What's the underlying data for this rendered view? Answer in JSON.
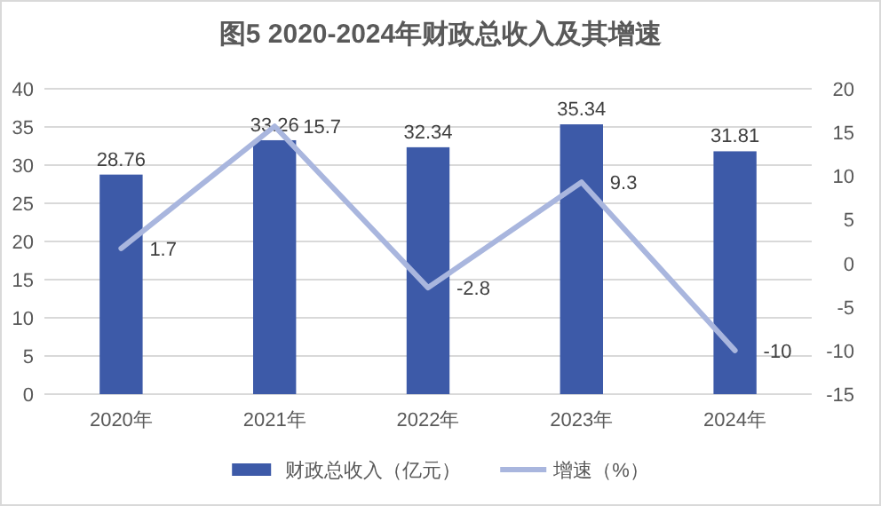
{
  "chart_data": {
    "type": "bar",
    "title": "图5 2020-2024年财政总收入及其增速",
    "categories": [
      "2020年",
      "2021年",
      "2022年",
      "2023年",
      "2024年"
    ],
    "series": [
      {
        "name": "财政总收入（亿元）",
        "color": "#3d5aa8",
        "values": [
          28.76,
          33.26,
          32.34,
          35.34,
          31.81
        ]
      },
      {
        "name": "增速（%）",
        "type": "line",
        "axis": "y2",
        "color": "#a9b6de",
        "marker": "none",
        "values": [
          1.7,
          15.7,
          -2.8,
          9.3,
          -10
        ]
      }
    ],
    "ylim": [
      0,
      40
    ],
    "yticks": [
      0,
      5,
      10,
      15,
      20,
      25,
      30,
      35,
      40
    ],
    "y2lim": [
      -15,
      20
    ],
    "y2ticks": [
      -15,
      -10,
      -5,
      0,
      5,
      10,
      15,
      20
    ],
    "grid": "y",
    "legend": "bottom",
    "data_labels": true
  }
}
